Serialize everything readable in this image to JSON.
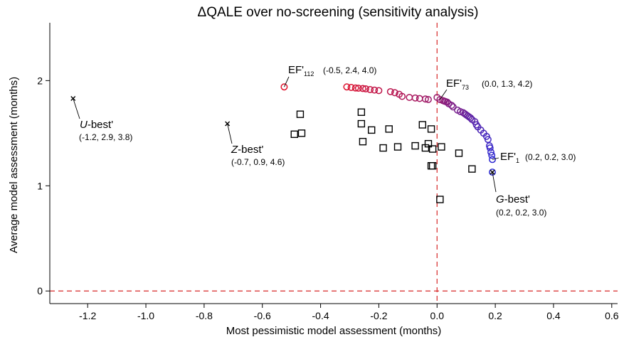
{
  "chart_data": {
    "type": "scatter",
    "title": "ΔQALE over no-screening (sensitivity analysis)",
    "xlabel": "Most pessimistic model assessment (months)",
    "ylabel": "Average model assessment (months)",
    "xlim": [
      -1.33,
      0.62
    ],
    "ylim": [
      -0.12,
      2.55
    ],
    "xticks": [
      "-1.2",
      "-1.0",
      "-0.8",
      "-0.6",
      "-0.4",
      "-0.2",
      "0.0",
      "0.2",
      "0.4",
      "0.6"
    ],
    "xtick_values": [
      -1.2,
      -1.0,
      -0.8,
      -0.6,
      -0.4,
      -0.2,
      0.0,
      0.2,
      0.4,
      0.6
    ],
    "yticks": [
      "0",
      "1",
      "2"
    ],
    "ytick_values": [
      0,
      1,
      2
    ],
    "grid": false,
    "reference_lines": {
      "x": 0,
      "y": 0,
      "color": "#d62728",
      "style": "dashed"
    },
    "series": [
      {
        "marker": "square",
        "color": "#000000",
        "points": [
          [
            -0.47,
            1.68
          ],
          [
            -0.26,
            1.7
          ],
          [
            -0.05,
            1.58
          ],
          [
            -0.49,
            1.49
          ],
          [
            -0.465,
            1.5
          ],
          [
            -0.26,
            1.59
          ],
          [
            -0.225,
            1.53
          ],
          [
            -0.165,
            1.54
          ],
          [
            -0.02,
            1.54
          ],
          [
            -0.255,
            1.42
          ],
          [
            -0.03,
            1.4
          ],
          [
            -0.185,
            1.36
          ],
          [
            -0.135,
            1.37
          ],
          [
            -0.075,
            1.38
          ],
          [
            -0.04,
            1.36
          ],
          [
            0.015,
            1.37
          ],
          [
            -0.015,
            1.35
          ],
          [
            0.075,
            1.31
          ],
          [
            -0.02,
            1.19
          ],
          [
            -0.015,
            1.19
          ],
          [
            0.12,
            1.16
          ],
          [
            0.01,
            0.87
          ]
        ]
      },
      {
        "marker": "circle",
        "color_start": "#e0102a",
        "color_end": "#2a2ad6",
        "points": [
          [
            -0.525,
            1.94
          ],
          [
            -0.31,
            1.94
          ],
          [
            -0.295,
            1.935
          ],
          [
            -0.28,
            1.93
          ],
          [
            -0.27,
            1.928
          ],
          [
            -0.255,
            1.925
          ],
          [
            -0.245,
            1.922
          ],
          [
            -0.23,
            1.915
          ],
          [
            -0.215,
            1.91
          ],
          [
            -0.2,
            1.905
          ],
          [
            -0.16,
            1.895
          ],
          [
            -0.145,
            1.885
          ],
          [
            -0.13,
            1.87
          ],
          [
            -0.12,
            1.85
          ],
          [
            -0.095,
            1.84
          ],
          [
            -0.075,
            1.835
          ],
          [
            -0.06,
            1.83
          ],
          [
            -0.04,
            1.825
          ],
          [
            -0.03,
            1.82
          ],
          [
            0.0,
            1.84
          ],
          [
            0.01,
            1.82
          ],
          [
            0.02,
            1.81
          ],
          [
            0.025,
            1.805
          ],
          [
            0.03,
            1.8
          ],
          [
            0.035,
            1.795
          ],
          [
            0.04,
            1.78
          ],
          [
            0.05,
            1.765
          ],
          [
            0.055,
            1.75
          ],
          [
            0.07,
            1.72
          ],
          [
            0.08,
            1.705
          ],
          [
            0.09,
            1.695
          ],
          [
            0.095,
            1.685
          ],
          [
            0.1,
            1.675
          ],
          [
            0.105,
            1.665
          ],
          [
            0.11,
            1.655
          ],
          [
            0.115,
            1.645
          ],
          [
            0.12,
            1.63
          ],
          [
            0.13,
            1.61
          ],
          [
            0.135,
            1.58
          ],
          [
            0.14,
            1.56
          ],
          [
            0.15,
            1.53
          ],
          [
            0.16,
            1.5
          ],
          [
            0.17,
            1.47
          ],
          [
            0.175,
            1.44
          ],
          [
            0.18,
            1.38
          ],
          [
            0.182,
            1.36
          ],
          [
            0.185,
            1.32
          ],
          [
            0.188,
            1.29
          ],
          [
            0.19,
            1.25
          ],
          [
            0.19,
            1.13
          ]
        ]
      },
      {
        "marker": "x",
        "color": "#000000",
        "points": [
          [
            -1.25,
            1.83
          ],
          [
            -0.72,
            1.59
          ],
          [
            0.19,
            1.13
          ]
        ]
      }
    ],
    "annotations": [
      {
        "italic": "U",
        "text": "-best'",
        "values": "(-1.2, 2.9, 3.8)",
        "point": [
          -1.25,
          1.83
        ]
      },
      {
        "italic": "Z",
        "text": "-best'",
        "values": "(-0.7, 0.9, 4.6)",
        "point": [
          -0.72,
          1.59
        ]
      },
      {
        "label": "EF'",
        "sub": "112",
        "values": "(-0.5, 2.4, 4.0)",
        "point": [
          -0.525,
          1.94
        ]
      },
      {
        "label": "EF'",
        "sub": "73",
        "values": "(0.0, 1.3, 4.2)",
        "point": [
          0.01,
          1.82
        ]
      },
      {
        "label": "EF'",
        "sub": "1",
        "values": "(0.2, 0.2, 3.0)",
        "point": [
          0.19,
          1.25
        ]
      },
      {
        "italic": "G",
        "text": "-best'",
        "values": "(0.2, 0.2, 3.0)",
        "point": [
          0.19,
          1.13
        ]
      }
    ]
  }
}
